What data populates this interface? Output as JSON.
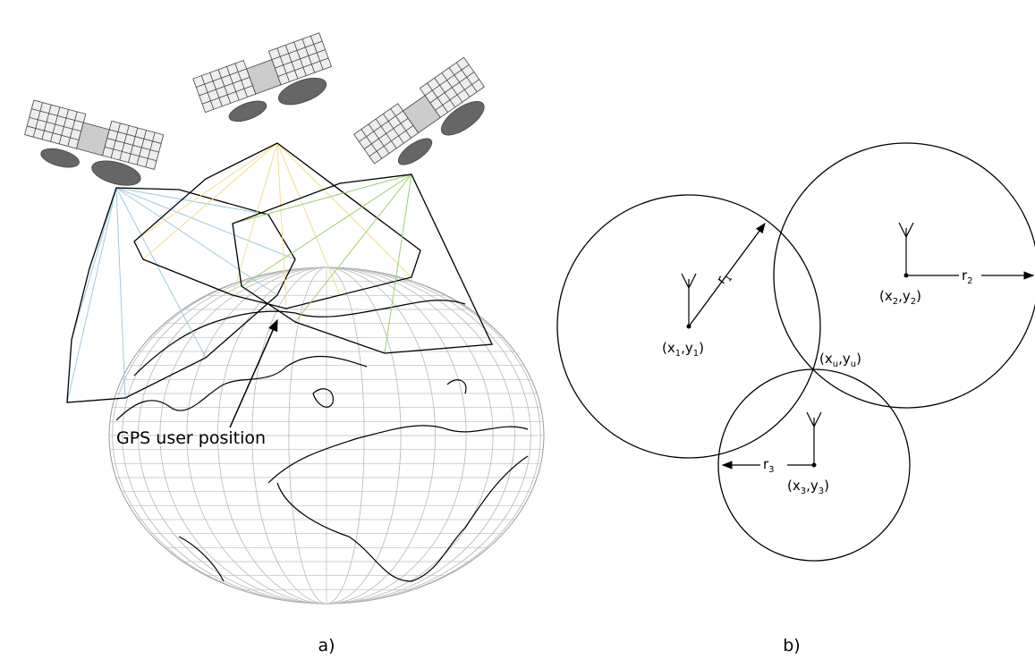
{
  "panel_a": {
    "user_label": "GPS user position",
    "caption": "a)"
  },
  "panel_b": {
    "caption": "b)",
    "labels": {
      "p1": [
        "(x",
        "1",
        ",y",
        "1",
        ")"
      ],
      "p2": [
        "(x",
        "2",
        ",y",
        "2",
        ")"
      ],
      "p3": [
        "(x",
        "3",
        ",y",
        "3",
        ")"
      ],
      "pu": [
        "(x",
        "u",
        ",y",
        "u",
        ")"
      ],
      "r1": [
        "r",
        "1"
      ],
      "r2": [
        "r",
        "2"
      ],
      "r3": [
        "r",
        "3"
      ]
    }
  }
}
